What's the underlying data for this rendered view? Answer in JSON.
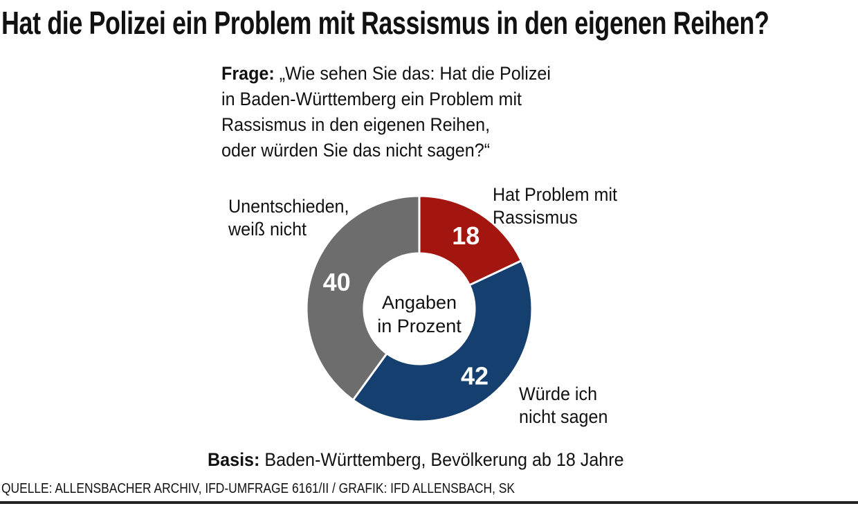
{
  "title": "Hat die Polizei ein Problem mit Rassismus in den eigenen Reihen?",
  "question": {
    "label": "Frage:",
    "lines": [
      "„Wie sehen Sie das: Hat die Polizei",
      "in Baden-Württemberg ein Problem mit",
      "Rassismus in den eigenen Reihen,",
      "oder würden Sie das nicht sagen?“"
    ]
  },
  "chart_data": {
    "type": "pie",
    "donut": true,
    "center_label": [
      "Angaben",
      "in Prozent"
    ],
    "slices": [
      {
        "label": [
          "Hat Problem mit",
          "Rassismus"
        ],
        "value": 18,
        "color": "#a3160f"
      },
      {
        "label": [
          "Würde ich",
          "nicht sagen"
        ],
        "value": 42,
        "color": "#143f6e"
      },
      {
        "label": [
          "Unentschieden,",
          "weiß nicht"
        ],
        "value": 40,
        "color": "#6d6d6d"
      }
    ]
  },
  "basis": {
    "label": "Basis:",
    "text": "Baden-Württemberg, Bevölkerung ab 18 Jahre"
  },
  "source": "QUELLE: ALLENSBACHER ARCHIV, IFD-UMFRAGE 6161/II  / GRAFIK: IFD ALLENSBACH, SK"
}
